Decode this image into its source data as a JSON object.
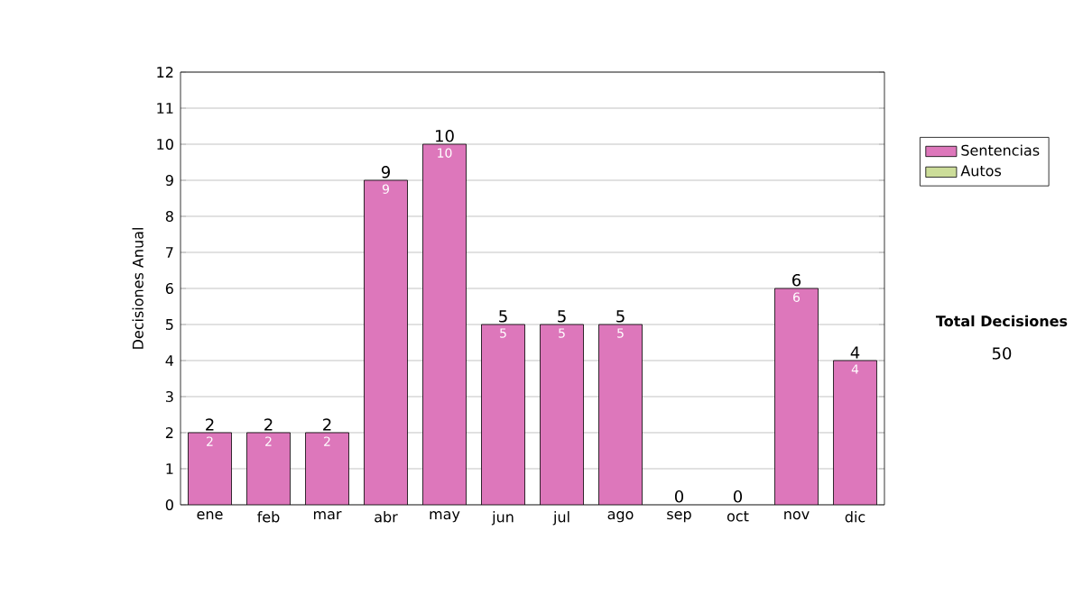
{
  "chart_data": {
    "type": "bar",
    "stacked": true,
    "ylabel": "Decisiones Anual",
    "categories": [
      "ene",
      "feb",
      "mar",
      "abr",
      "may",
      "jun",
      "jul",
      "ago",
      "sep",
      "oct",
      "nov",
      "dic"
    ],
    "series": [
      {
        "name": "Sentencias",
        "color": "#dd77bb",
        "values": [
          2,
          2,
          2,
          9,
          10,
          5,
          5,
          5,
          0,
          0,
          6,
          4
        ],
        "value_labels": [
          "2",
          "2",
          "2",
          "9",
          "10",
          "5",
          "5",
          "5",
          null,
          null,
          "6",
          "4"
        ]
      },
      {
        "name": "Autos",
        "color": "#ccdd99",
        "values": [
          0,
          0,
          0,
          0,
          0,
          0,
          0,
          0,
          0,
          0,
          0,
          0
        ]
      }
    ],
    "totals": [
      "2",
      "2",
      "2",
      "9",
      "10",
      "5",
      "5",
      "5",
      "0",
      "0",
      "6",
      "4"
    ],
    "ylim": [
      0,
      12
    ],
    "yticks": [
      0,
      1,
      2,
      3,
      4,
      5,
      6,
      7,
      8,
      9,
      10,
      11,
      12
    ],
    "grid": "y",
    "legend": "right",
    "annotations": [
      "Total Decisiones",
      "50"
    ]
  }
}
